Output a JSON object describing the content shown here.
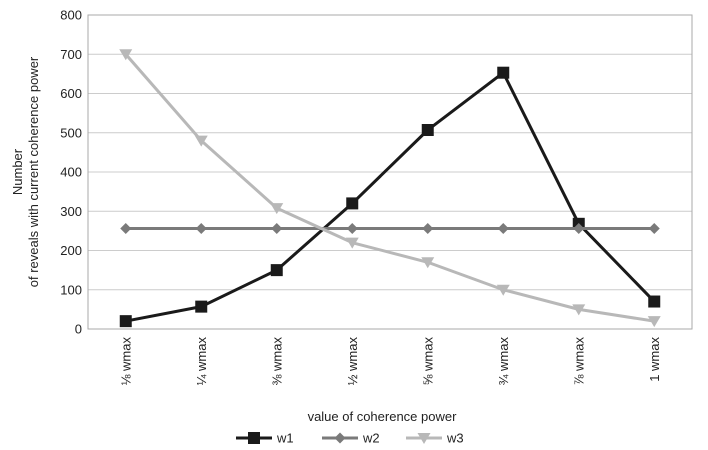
{
  "chart_data": {
    "type": "line",
    "title": "",
    "xlabel": "value of coherence power",
    "ylabel_lines": [
      "Number",
      "of reveals with current coherence power"
    ],
    "categories": [
      "⅛ wmax",
      "¼ wmax",
      "⅜ wmax",
      "½ wmax",
      "⅝ wmax",
      "¾ wmax",
      "⅞ wmax",
      "1 wmax"
    ],
    "ylim": [
      0,
      800
    ],
    "yticks": [
      0,
      100,
      200,
      300,
      400,
      500,
      600,
      700,
      800
    ],
    "grid": true,
    "legend_position": "bottom",
    "series": [
      {
        "name": "w1",
        "values": [
          20,
          57,
          150,
          320,
          507,
          653,
          268,
          70
        ],
        "color": "#1a1a1a",
        "marker": "square"
      },
      {
        "name": "w2",
        "values": [
          256,
          256,
          256,
          256,
          256,
          256,
          256,
          256
        ],
        "color": "#7a7a7a",
        "marker": "diamond"
      },
      {
        "name": "w3",
        "values": [
          700,
          480,
          308,
          220,
          170,
          100,
          50,
          20
        ],
        "color": "#b8b8b8",
        "marker": "triangle-down"
      }
    ]
  }
}
